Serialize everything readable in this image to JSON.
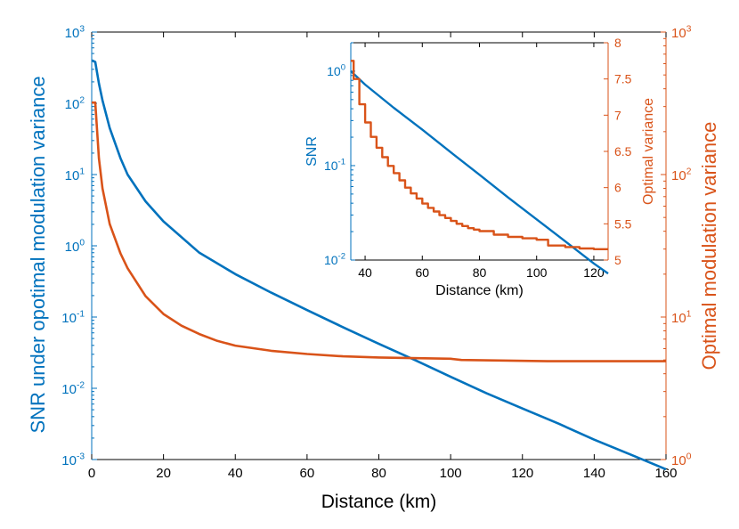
{
  "chart_data": [
    {
      "type": "line",
      "title": "",
      "xlabel": "Distance (km)",
      "ylabel_left": "SNR under opotimal modulation variance",
      "ylabel_right": "Optimal modulation variance",
      "xlim": [
        0,
        160
      ],
      "ylim_left": [
        0.001,
        1000
      ],
      "ylim_right": [
        1,
        1000
      ],
      "yscale_left": "log",
      "yscale_right": "log",
      "x_ticks": [
        "0",
        "20",
        "40",
        "60",
        "80",
        "100",
        "120",
        "140",
        "160"
      ],
      "y_left_ticks": [
        {
          "base": "10",
          "exp": "-3"
        },
        {
          "base": "10",
          "exp": "-2"
        },
        {
          "base": "10",
          "exp": "-1"
        },
        {
          "base": "10",
          "exp": "0"
        },
        {
          "base": "10",
          "exp": "1"
        },
        {
          "base": "10",
          "exp": "2"
        },
        {
          "base": "10",
          "exp": "3"
        }
      ],
      "y_right_ticks": [
        {
          "base": "10",
          "exp": "0"
        },
        {
          "base": "10",
          "exp": "1"
        },
        {
          "base": "10",
          "exp": "2"
        },
        {
          "base": "10",
          "exp": "3"
        }
      ],
      "series": [
        {
          "axis": "left",
          "color": "#0072BD",
          "x": [
            0,
            1,
            2,
            3,
            5,
            8,
            10,
            15,
            20,
            30,
            40,
            50,
            60,
            70,
            80,
            90,
            100,
            110,
            120,
            130,
            140,
            150,
            160
          ],
          "y": [
            400,
            380,
            190,
            110,
            45,
            17,
            10,
            4.2,
            2.2,
            0.8,
            0.4,
            0.22,
            0.125,
            0.072,
            0.042,
            0.025,
            0.0145,
            0.0085,
            0.0052,
            0.0032,
            0.0019,
            0.00118,
            0.00073
          ]
        },
        {
          "axis": "right",
          "color": "#D95319",
          "x": [
            0,
            1,
            2,
            3,
            5,
            8,
            10,
            15,
            20,
            25,
            30,
            35,
            40,
            50,
            60,
            70,
            80,
            100,
            103,
            127,
            160
          ],
          "y": [
            320,
            320,
            130,
            80,
            45,
            28,
            22,
            14,
            10.5,
            8.7,
            7.6,
            6.8,
            6.3,
            5.8,
            5.5,
            5.3,
            5.2,
            5.1,
            5.0,
            4.9,
            4.9
          ]
        }
      ],
      "grid": false,
      "legend": "none"
    },
    {
      "type": "line",
      "title": "",
      "xlabel": "Distance (km)",
      "ylabel_left": "SNR",
      "ylabel_right": "Optimal variance",
      "xlim": [
        35,
        125
      ],
      "ylim_left": [
        0.01,
        2
      ],
      "ylim_right": [
        5,
        8
      ],
      "yscale_left": "log",
      "yscale_right": "linear",
      "x_ticks": [
        "40",
        "60",
        "80",
        "100",
        "120"
      ],
      "y_left_ticks": [
        {
          "base": "10",
          "exp": "-2"
        },
        {
          "base": "10",
          "exp": "-1"
        },
        {
          "base": "10",
          "exp": "0"
        }
      ],
      "y_right_ticks": [
        "5",
        "5.5",
        "6",
        "6.5",
        "7",
        "7.5",
        "8"
      ],
      "series": [
        {
          "axis": "left",
          "color": "#0072BD",
          "x": [
            35,
            40,
            50,
            60,
            70,
            80,
            90,
            100,
            110,
            120,
            125
          ],
          "y": [
            1.0,
            0.72,
            0.41,
            0.24,
            0.138,
            0.08,
            0.046,
            0.027,
            0.0158,
            0.0092,
            0.0072
          ]
        },
        {
          "axis": "right",
          "color": "#D95319",
          "x": [
            35,
            36,
            38,
            40,
            42,
            44,
            46,
            48,
            50,
            52,
            54,
            56,
            58,
            60,
            62,
            64,
            66,
            68,
            70,
            72,
            74,
            76,
            78,
            80,
            85,
            90,
            95,
            100,
            104,
            110,
            115,
            120,
            125
          ],
          "y": [
            7.75,
            7.5,
            7.15,
            6.9,
            6.7,
            6.55,
            6.42,
            6.3,
            6.2,
            6.1,
            6.0,
            5.92,
            5.85,
            5.78,
            5.72,
            5.67,
            5.62,
            5.58,
            5.54,
            5.5,
            5.47,
            5.44,
            5.42,
            5.4,
            5.35,
            5.32,
            5.3,
            5.28,
            5.2,
            5.18,
            5.16,
            5.15,
            5.15
          ]
        }
      ],
      "grid": false,
      "legend": "none"
    }
  ],
  "colors": {
    "snr": "#0072BD",
    "variance": "#D95319",
    "axis": "#000000"
  }
}
